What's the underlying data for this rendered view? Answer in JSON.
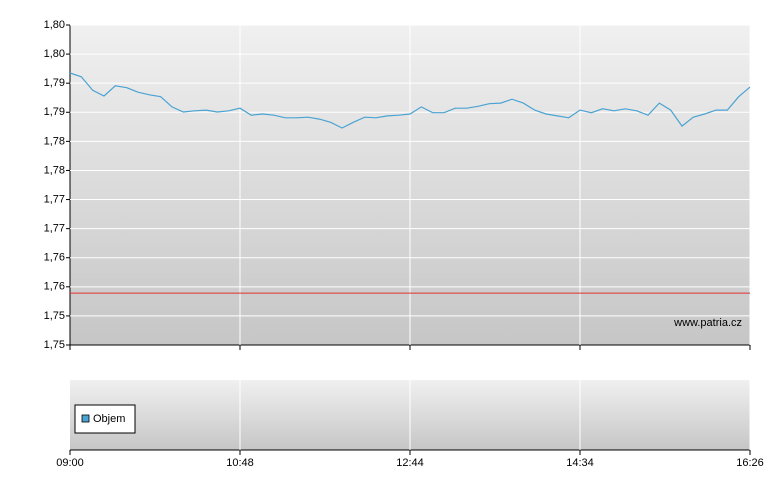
{
  "chart_data": {
    "type": "line",
    "categories": [
      "09:00",
      null,
      null,
      null,
      null,
      null,
      null,
      null,
      null,
      null,
      null,
      null,
      null,
      null,
      null,
      "10:48",
      null,
      null,
      null,
      null,
      null,
      null,
      null,
      null,
      null,
      null,
      null,
      null,
      null,
      null,
      "12:44",
      null,
      null,
      null,
      null,
      null,
      null,
      null,
      null,
      null,
      null,
      null,
      null,
      null,
      null,
      "14:34",
      null,
      null,
      null,
      null,
      null,
      null,
      null,
      null,
      null,
      null,
      null,
      null,
      null,
      null,
      "16:26"
    ],
    "series": [
      {
        "color": "#4ba3d3",
        "values": [
          1.7925,
          1.7919,
          1.7898,
          1.7889,
          1.7905,
          1.7902,
          1.7895,
          1.7891,
          1.7888,
          1.7872,
          1.7864,
          1.7866,
          1.7867,
          1.7864,
          1.7866,
          1.787,
          1.7859,
          1.7861,
          1.7859,
          1.7855,
          1.7855,
          1.7856,
          1.7853,
          1.7848,
          1.7839,
          1.7848,
          1.7856,
          1.7855,
          1.7858,
          1.7859,
          1.7861,
          1.7872,
          1.7863,
          1.7863,
          1.787,
          1.787,
          1.7873,
          1.7877,
          1.7878,
          1.7884,
          1.7878,
          1.7867,
          1.7861,
          1.7858,
          1.7855,
          1.7867,
          1.7863,
          1.7869,
          1.7866,
          1.7869,
          1.7866,
          1.7859,
          1.7878,
          1.7867,
          1.7842,
          1.7856,
          1.7861,
          1.7867,
          1.7867,
          1.7888,
          1.7903
        ]
      }
    ],
    "reference_value": 1.7581,
    "reference_color": "#e03030",
    "ylim": [
      1.75,
      1.8
    ],
    "yticks": [
      {
        "value": 1.75,
        "label": "1,75"
      },
      {
        "value": 1.754545,
        "label": "1,75"
      },
      {
        "value": 1.759091,
        "label": "1,76"
      },
      {
        "value": 1.763636,
        "label": "1,76"
      },
      {
        "value": 1.768182,
        "label": "1,77"
      },
      {
        "value": 1.772727,
        "label": "1,77"
      },
      {
        "value": 1.777273,
        "label": "1,78"
      },
      {
        "value": 1.781818,
        "label": "1,78"
      },
      {
        "value": 1.786364,
        "label": "1,79"
      },
      {
        "value": 1.790909,
        "label": "1,79"
      },
      {
        "value": 1.795455,
        "label": "1,80"
      },
      {
        "value": 1.8,
        "label": "1,80"
      }
    ],
    "grid": true,
    "watermark": "www.patria.cz",
    "volume_legend": {
      "name": "Objem",
      "color": "#4ba3d3"
    }
  }
}
